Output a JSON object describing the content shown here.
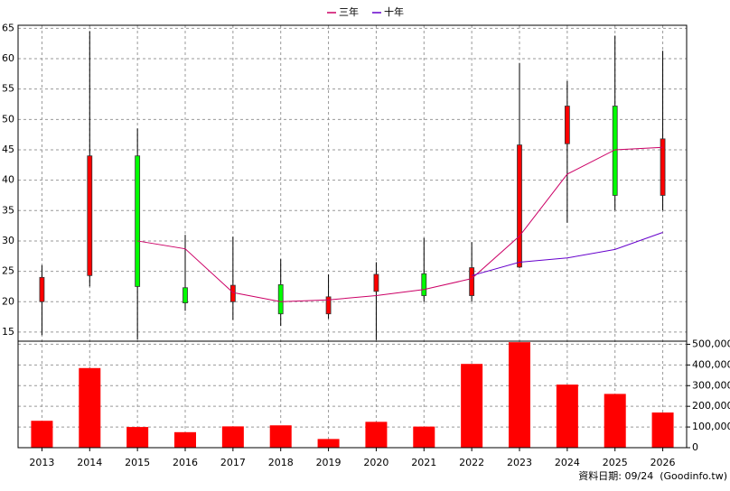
{
  "chart_data": {
    "type": "candlestick",
    "legend": "top",
    "categories": [
      "2013",
      "2014",
      "2015",
      "2016",
      "2017",
      "2018",
      "2019",
      "2020",
      "2021",
      "2022",
      "2023",
      "2024",
      "2025",
      "2026"
    ],
    "open": [
      20,
      24.3,
      44,
      22.3,
      20,
      22.8,
      18,
      21.7,
      24.6,
      21,
      25.7,
      46,
      52.2,
      37.5
    ],
    "high": [
      26,
      64.5,
      48.5,
      31,
      30.7,
      27,
      24.5,
      26.5,
      30.5,
      29.8,
      59.3,
      56.3,
      63.8,
      61.3
    ],
    "low": [
      14.5,
      22.5,
      13.8,
      18.5,
      17,
      16,
      17.2,
      13.7,
      20,
      20,
      25.5,
      33,
      35,
      35
    ],
    "close": [
      24,
      44,
      22.5,
      19.8,
      22.7,
      18,
      20.8,
      24.5,
      21,
      25.6,
      45.8,
      52.2,
      37.5,
      46.8
    ],
    "up_color": "#ff0000",
    "down_color": "#00ff00",
    "ylim": [
      13.5,
      65.5
    ],
    "yticks": [
      15,
      20,
      25,
      30,
      35,
      40,
      45,
      50,
      55,
      60,
      65
    ],
    "grid": true,
    "series": [
      {
        "name": "三年",
        "color": "#cc0066",
        "values": [
          null,
          null,
          30,
          28.7,
          21.5,
          20,
          20.3,
          21,
          22,
          23.8,
          30.8,
          41,
          45,
          45.4
        ]
      },
      {
        "name": "十年",
        "color": "#6600cc",
        "values": [
          null,
          null,
          null,
          null,
          null,
          null,
          null,
          null,
          null,
          24.3,
          26.5,
          27.2,
          28.6,
          31.4
        ]
      }
    ],
    "volume": {
      "color": "#ff0000",
      "values": [
        130000,
        385000,
        100000,
        75000,
        103000,
        108000,
        42000,
        125000,
        102000,
        405000,
        510000,
        305000,
        260000,
        170000
      ],
      "ylim": [
        0,
        515000
      ],
      "yticks": [
        0,
        {
          "value": 100000,
          "label": "100,000"
        },
        {
          "value": 200000,
          "label": "200,000"
        },
        {
          "value": 300000,
          "label": "300,000"
        },
        {
          "value": 400000,
          "label": "400,000"
        },
        {
          "value": 500000,
          "label": "500,000"
        }
      ]
    },
    "footnote": "資料日期: 09/24  (Goodinfo.tw)"
  }
}
